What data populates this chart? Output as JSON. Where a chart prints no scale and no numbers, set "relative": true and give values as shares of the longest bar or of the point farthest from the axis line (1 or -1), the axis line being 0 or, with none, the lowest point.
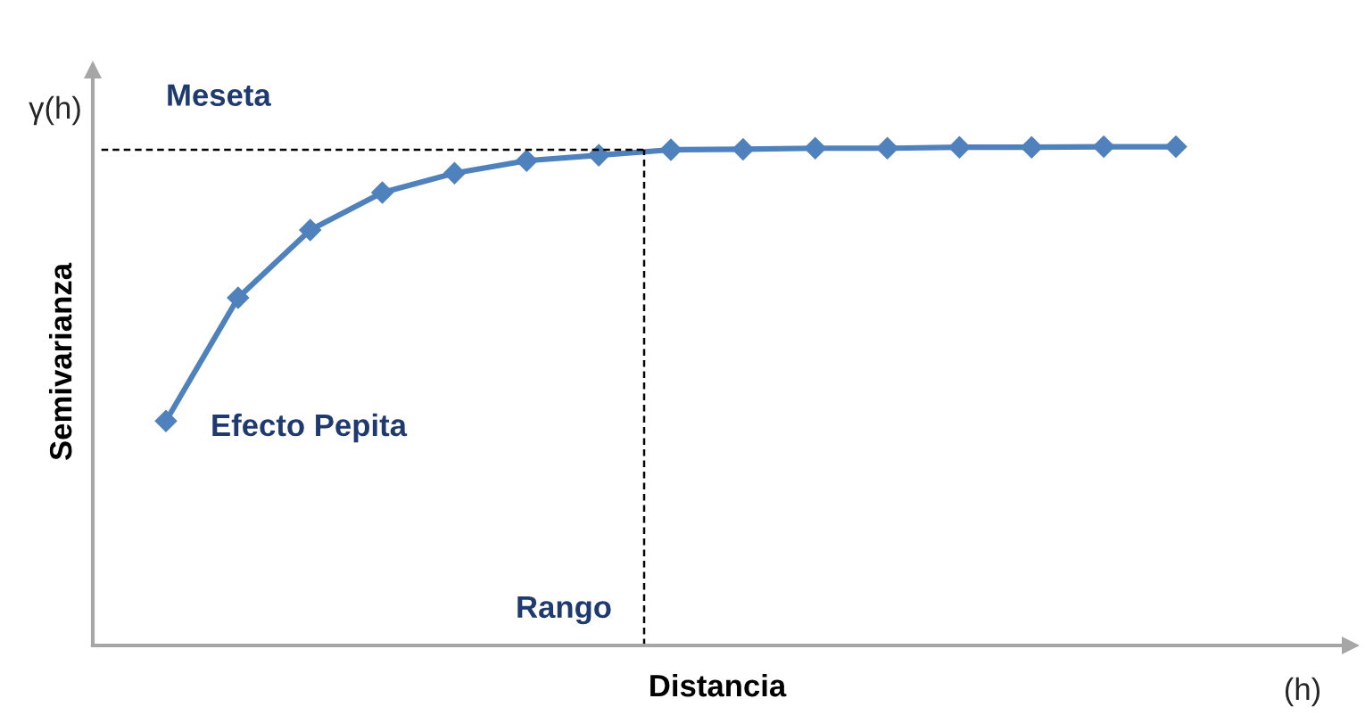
{
  "chart_data": {
    "type": "line",
    "xlabel": "Distancia",
    "ylabel": "Semivarianza",
    "annotations": [
      "γ(h)",
      "Efecto Pepita",
      "Rango",
      "(h)"
    ],
    "categories": [
      null,
      null,
      null,
      null,
      null,
      null,
      null,
      null,
      null,
      null,
      null,
      null,
      null,
      null,
      null
    ],
    "series": [
      {
        "color": "#4f81bd",
        "values": [
          0.45,
          0.697,
          0.833,
          0.908,
          0.947,
          0.972,
          0.983,
          0.994,
          0.995,
          0.997,
          0.997,
          0.999,
          0.999,
          1.0,
          1.0
        ]
      }
    ],
    "relative": true,
    "marker": "diamond",
    "line_style": "solid",
    "ref_lines": [
      {
        "axis": "y",
        "value": 0.994,
        "label": "Meseta",
        "color": "#000000",
        "line_style": "dashed"
      }
    ]
  }
}
